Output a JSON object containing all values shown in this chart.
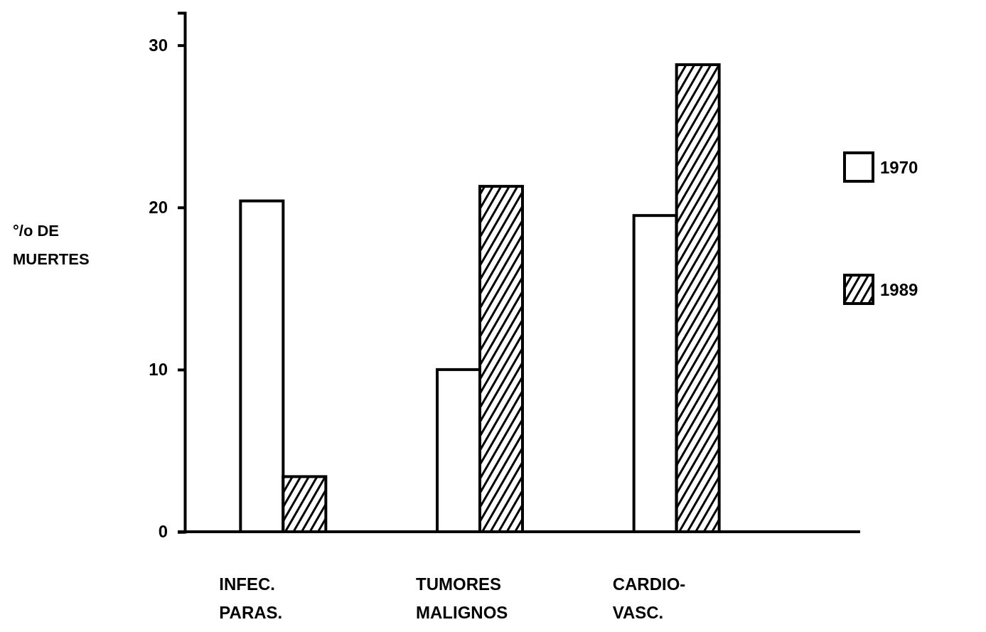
{
  "chart_data": {
    "type": "bar",
    "ylabel": "°/o DE\nMUERTES",
    "categories": [
      "INFEC.\nPARAS.",
      "TUMORES\nMALIGNOS",
      "CARDIO-\nVASC."
    ],
    "series": [
      {
        "name": "1970",
        "color": "#ffffff",
        "values": [
          20.4,
          10,
          19.5
        ]
      },
      {
        "name": "1989",
        "color": "#000000",
        "values": [
          3.4,
          21.3,
          28.8
        ]
      }
    ],
    "ylim": [
      0,
      32
    ],
    "yticks": [
      0,
      10,
      20,
      30
    ],
    "grid": false,
    "legend": "right"
  }
}
